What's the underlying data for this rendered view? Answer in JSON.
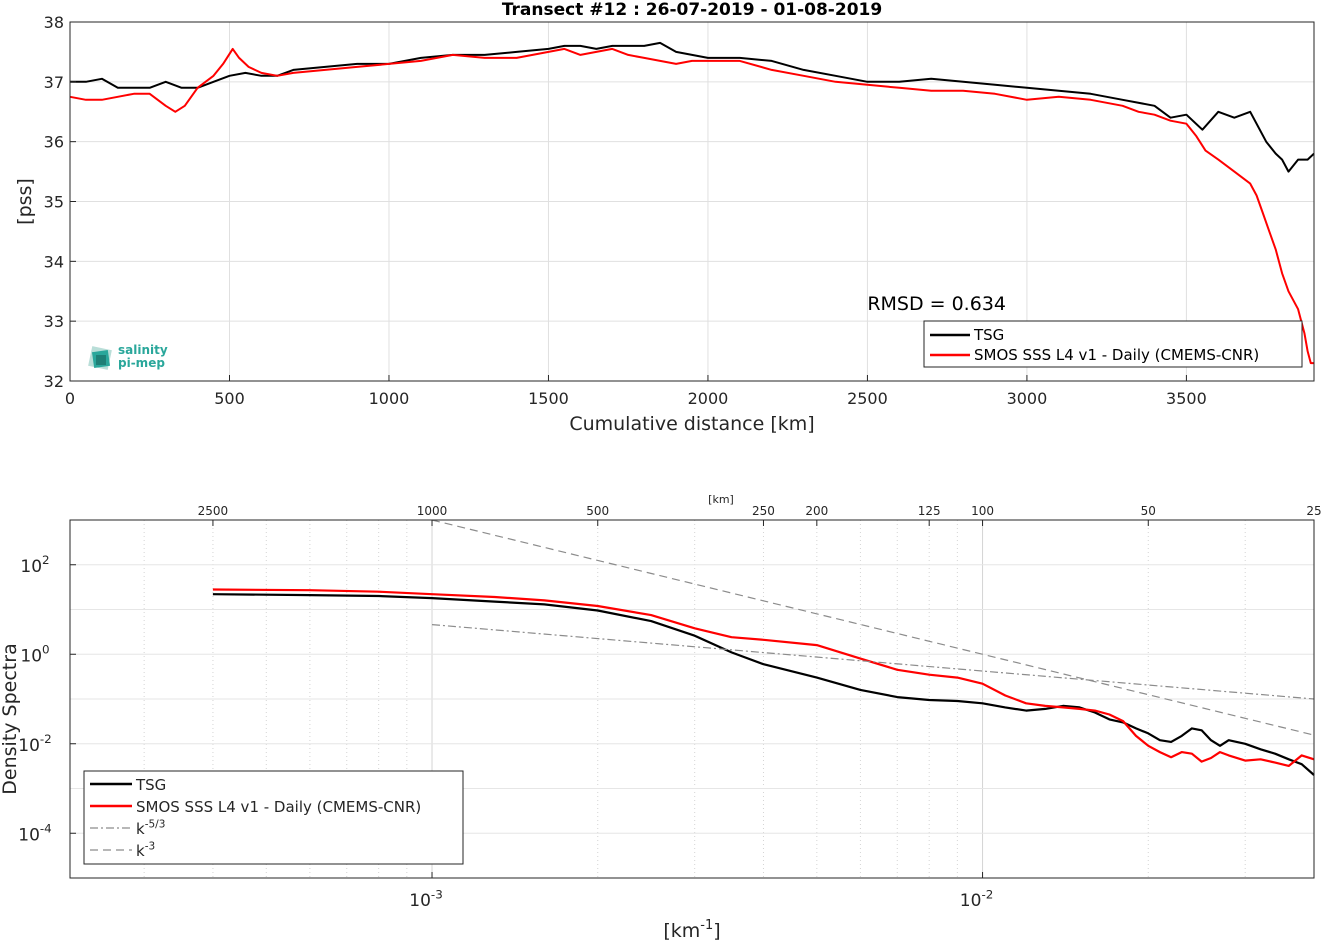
{
  "colors": {
    "tsg": "#000000",
    "smos": "#ff0000",
    "ref_lines": "#8c8c8c",
    "grid": "#e0e0e0"
  },
  "logo": {
    "line1": "salinity",
    "line2": "pi-mep"
  },
  "chart_data": [
    {
      "type": "line",
      "title": "Transect #12 : 26-07-2019 - 01-08-2019",
      "xlabel": "Cumulative distance [km]",
      "ylabel": "[pss]",
      "xlim": [
        0,
        3900
      ],
      "ylim": [
        32,
        38
      ],
      "xticks": [
        0,
        500,
        1000,
        1500,
        2000,
        2500,
        3000,
        3500
      ],
      "yticks": [
        32,
        33,
        34,
        35,
        36,
        37,
        38
      ],
      "grid": true,
      "legend_position": "bottom-right",
      "annotation": "RMSD = 0.634",
      "series": [
        {
          "name": "TSG",
          "color": "#000000",
          "x": [
            0,
            50,
            100,
            150,
            200,
            250,
            300,
            350,
            400,
            450,
            500,
            550,
            600,
            650,
            700,
            800,
            900,
            1000,
            1100,
            1200,
            1300,
            1400,
            1500,
            1550,
            1600,
            1650,
            1700,
            1750,
            1800,
            1850,
            1900,
            1950,
            2000,
            2100,
            2200,
            2300,
            2400,
            2500,
            2600,
            2700,
            2800,
            2900,
            3000,
            3100,
            3200,
            3300,
            3400,
            3450,
            3500,
            3550,
            3600,
            3650,
            3700,
            3750,
            3780,
            3800,
            3820,
            3850,
            3880,
            3900
          ],
          "y": [
            37.0,
            37.0,
            37.05,
            36.9,
            36.9,
            36.9,
            37.0,
            36.9,
            36.9,
            37.0,
            37.1,
            37.15,
            37.1,
            37.1,
            37.2,
            37.25,
            37.3,
            37.3,
            37.4,
            37.45,
            37.45,
            37.5,
            37.55,
            37.6,
            37.6,
            37.55,
            37.6,
            37.6,
            37.6,
            37.65,
            37.5,
            37.45,
            37.4,
            37.4,
            37.35,
            37.2,
            37.1,
            37.0,
            37.0,
            37.05,
            37.0,
            36.95,
            36.9,
            36.85,
            36.8,
            36.7,
            36.6,
            36.4,
            36.45,
            36.2,
            36.5,
            36.4,
            36.5,
            36.0,
            35.8,
            35.7,
            35.5,
            35.7,
            35.7,
            35.8
          ]
        },
        {
          "name": "SMOS SSS L4 v1 - Daily (CMEMS-CNR)",
          "color": "#ff0000",
          "x": [
            0,
            50,
            100,
            150,
            200,
            250,
            300,
            330,
            360,
            400,
            450,
            480,
            510,
            530,
            560,
            600,
            650,
            700,
            800,
            900,
            1000,
            1100,
            1200,
            1300,
            1400,
            1500,
            1550,
            1600,
            1650,
            1700,
            1750,
            1800,
            1850,
            1900,
            1950,
            2000,
            2100,
            2200,
            2300,
            2400,
            2500,
            2600,
            2700,
            2800,
            2900,
            3000,
            3100,
            3200,
            3300,
            3350,
            3400,
            3450,
            3500,
            3530,
            3560,
            3600,
            3650,
            3700,
            3720,
            3740,
            3760,
            3780,
            3800,
            3820,
            3850,
            3870,
            3880,
            3890,
            3900
          ],
          "y": [
            36.75,
            36.7,
            36.7,
            36.75,
            36.8,
            36.8,
            36.6,
            36.5,
            36.6,
            36.9,
            37.1,
            37.3,
            37.55,
            37.4,
            37.25,
            37.15,
            37.1,
            37.15,
            37.2,
            37.25,
            37.3,
            37.35,
            37.45,
            37.4,
            37.4,
            37.5,
            37.55,
            37.45,
            37.5,
            37.55,
            37.45,
            37.4,
            37.35,
            37.3,
            37.35,
            37.35,
            37.35,
            37.2,
            37.1,
            37.0,
            36.95,
            36.9,
            36.85,
            36.85,
            36.8,
            36.7,
            36.75,
            36.7,
            36.6,
            36.5,
            36.45,
            36.35,
            36.3,
            36.1,
            35.85,
            35.7,
            35.5,
            35.3,
            35.1,
            34.8,
            34.5,
            34.2,
            33.8,
            33.5,
            33.2,
            32.8,
            32.5,
            32.3,
            32.3
          ]
        }
      ]
    },
    {
      "type": "line",
      "title": "",
      "xlabel": "[km-1]",
      "ylabel": "Density Spectra",
      "x_scale": "log",
      "y_scale": "log",
      "xlim": [
        0.00022,
        0.04
      ],
      "ylim": [
        1e-05,
        1000
      ],
      "xtick_labels": [
        {
          "value": 0.001,
          "base": "10",
          "exp": "-3"
        },
        {
          "value": 0.01,
          "base": "10",
          "exp": "-2"
        }
      ],
      "ytick_labels": [
        {
          "value": 100,
          "base": "10",
          "exp": "2"
        },
        {
          "value": 1,
          "base": "10",
          "exp": "0"
        },
        {
          "value": 0.01,
          "base": "10",
          "exp": "-2"
        },
        {
          "value": 0.0001,
          "base": "10",
          "exp": "-4"
        }
      ],
      "top_axis_label": "[km]",
      "top_axis_ticks": [
        2500,
        1000,
        500,
        250,
        200,
        125,
        100,
        50,
        25
      ],
      "grid": true,
      "legend_position": "bottom-left",
      "series": [
        {
          "name": "TSG",
          "color": "#000000",
          "x": [
            0.0004,
            0.0006,
            0.0008,
            0.001,
            0.0013,
            0.0016,
            0.002,
            0.0025,
            0.003,
            0.0035,
            0.004,
            0.005,
            0.006,
            0.007,
            0.008,
            0.009,
            0.01,
            0.011,
            0.012,
            0.013,
            0.014,
            0.015,
            0.016,
            0.017,
            0.018,
            0.019,
            0.02,
            0.021,
            0.022,
            0.023,
            0.024,
            0.025,
            0.026,
            0.027,
            0.028,
            0.03,
            0.032,
            0.034,
            0.036,
            0.038,
            0.04
          ],
          "y": [
            22,
            21,
            20,
            18,
            15,
            13,
            9.5,
            5.5,
            2.6,
            1.1,
            0.6,
            0.3,
            0.16,
            0.11,
            0.095,
            0.09,
            0.08,
            0.065,
            0.055,
            0.06,
            0.07,
            0.065,
            0.05,
            0.035,
            0.03,
            0.022,
            0.017,
            0.012,
            0.011,
            0.015,
            0.022,
            0.02,
            0.012,
            0.009,
            0.012,
            0.01,
            0.0075,
            0.006,
            0.0045,
            0.0035,
            0.002
          ]
        },
        {
          "name": "SMOS SSS L4 v1 - Daily (CMEMS-CNR)",
          "color": "#ff0000",
          "x": [
            0.0004,
            0.0006,
            0.0008,
            0.001,
            0.0013,
            0.0016,
            0.002,
            0.0025,
            0.003,
            0.0035,
            0.004,
            0.005,
            0.006,
            0.007,
            0.008,
            0.009,
            0.01,
            0.011,
            0.012,
            0.013,
            0.014,
            0.015,
            0.016,
            0.017,
            0.018,
            0.019,
            0.02,
            0.021,
            0.022,
            0.023,
            0.024,
            0.025,
            0.026,
            0.027,
            0.028,
            0.03,
            0.032,
            0.034,
            0.036,
            0.038,
            0.04
          ],
          "y": [
            28,
            27,
            25,
            22,
            19,
            16,
            12,
            7.5,
            3.8,
            2.4,
            2.1,
            1.6,
            0.8,
            0.45,
            0.35,
            0.3,
            0.22,
            0.12,
            0.08,
            0.07,
            0.065,
            0.06,
            0.055,
            0.045,
            0.032,
            0.015,
            0.009,
            0.0065,
            0.005,
            0.0065,
            0.006,
            0.004,
            0.0048,
            0.0065,
            0.0055,
            0.0042,
            0.0045,
            0.0038,
            0.0032,
            0.0055,
            0.0045
          ]
        },
        {
          "name": "k-5/3",
          "color": "#8c8c8c",
          "style": "dashdot",
          "x": [
            0.001,
            0.04
          ],
          "y": [
            4.6,
            0.1
          ]
        },
        {
          "name": "k-3",
          "color": "#8c8c8c",
          "style": "dashed",
          "x": [
            0.001,
            0.04
          ],
          "y": [
            1000,
            0.0156
          ]
        }
      ],
      "legend": [
        {
          "base": "TSG",
          "sup": ""
        },
        {
          "base": "SMOS SSS L4 v1 - Daily (CMEMS-CNR)",
          "sup": ""
        },
        {
          "base": "k",
          "sup": "-5/3"
        },
        {
          "base": "k",
          "sup": "-3"
        }
      ]
    }
  ]
}
